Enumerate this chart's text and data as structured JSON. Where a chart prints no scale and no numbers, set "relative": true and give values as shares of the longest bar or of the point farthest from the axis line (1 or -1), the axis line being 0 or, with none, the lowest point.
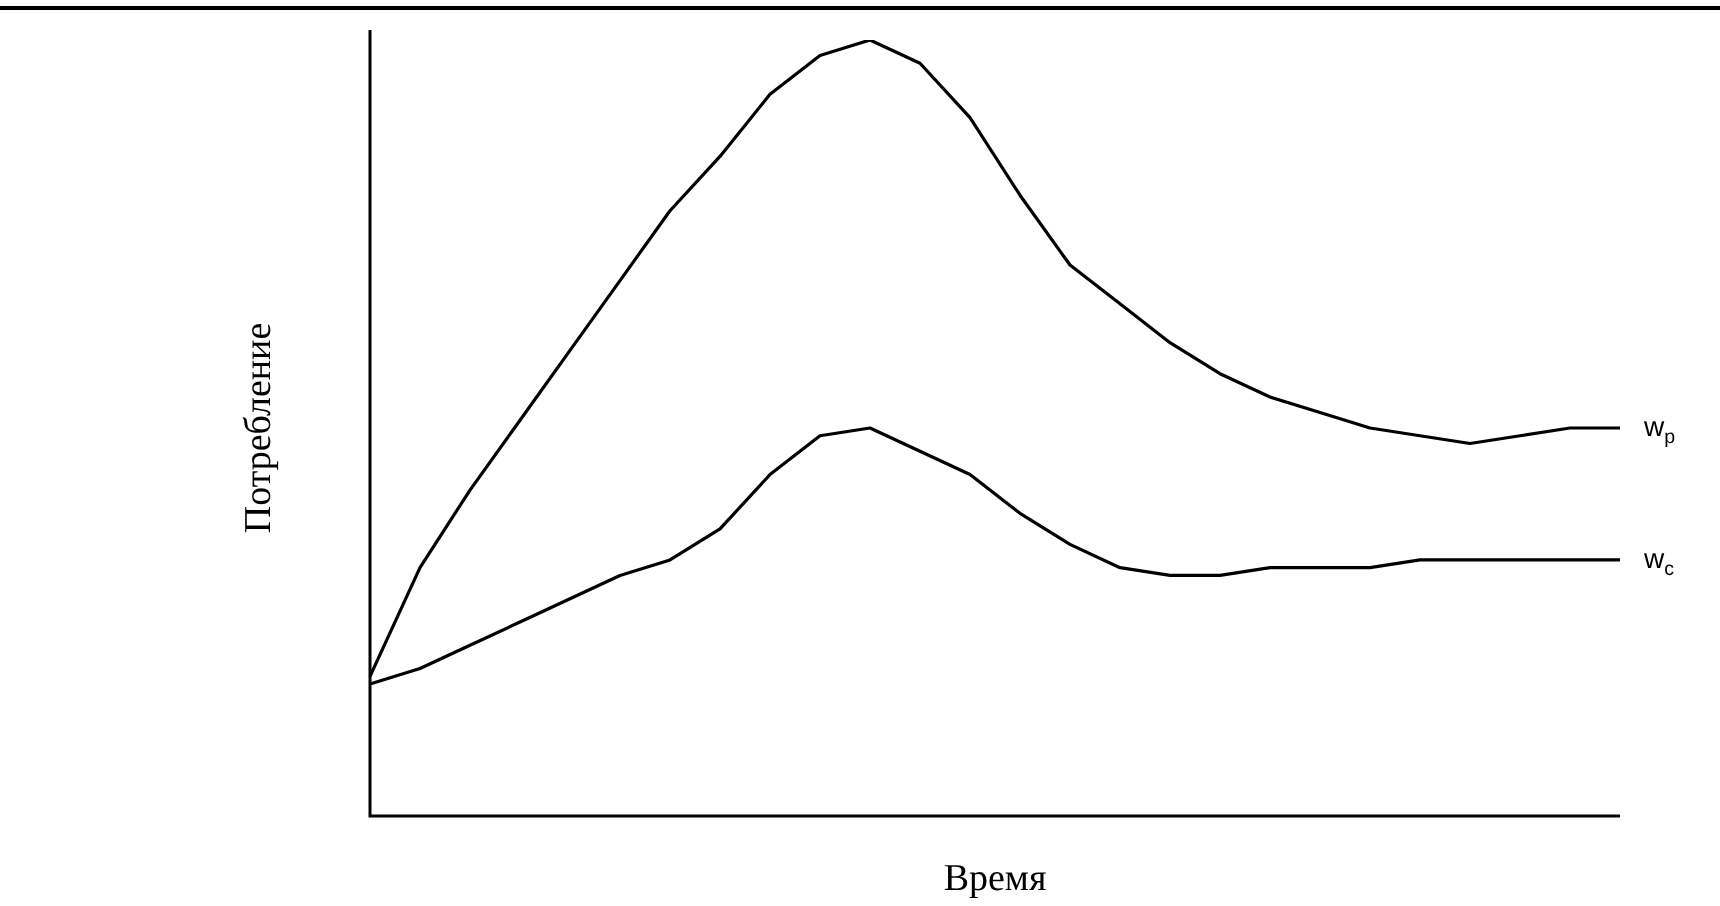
{
  "chart_data": {
    "type": "line",
    "relative": true,
    "xlabel": "Время",
    "ylabel": "Потребление",
    "legend": false,
    "marker": "none",
    "line_style": "solid",
    "categories": [
      null,
      null,
      null,
      null,
      null,
      null,
      null,
      null,
      null,
      null,
      null,
      null,
      null,
      null,
      null,
      null,
      null,
      null,
      null,
      null,
      null,
      null,
      null,
      null,
      null,
      null
    ],
    "series": [
      {
        "name": "w$_{p}$",
        "color": "#000000",
        "values": [
          0.18,
          0.32,
          0.42,
          0.51,
          0.6,
          0.69,
          0.78,
          0.85,
          0.93,
          0.98,
          1,
          0.97,
          0.9,
          0.8,
          0.71,
          0.66,
          0.61,
          0.57,
          0.54,
          0.52,
          0.5,
          0.49,
          0.48,
          0.49,
          0.5,
          0.5
        ]
      },
      {
        "name": "w$_{c}$",
        "color": "#000000",
        "values": [
          0.17,
          0.19,
          0.22,
          0.25,
          0.28,
          0.31,
          0.33,
          0.37,
          0.44,
          0.49,
          0.5,
          0.47,
          0.44,
          0.39,
          0.35,
          0.32,
          0.31,
          0.31,
          0.32,
          0.32,
          0.32,
          0.33,
          0.33,
          0.33,
          0.33,
          0.33
        ]
      }
    ]
  }
}
